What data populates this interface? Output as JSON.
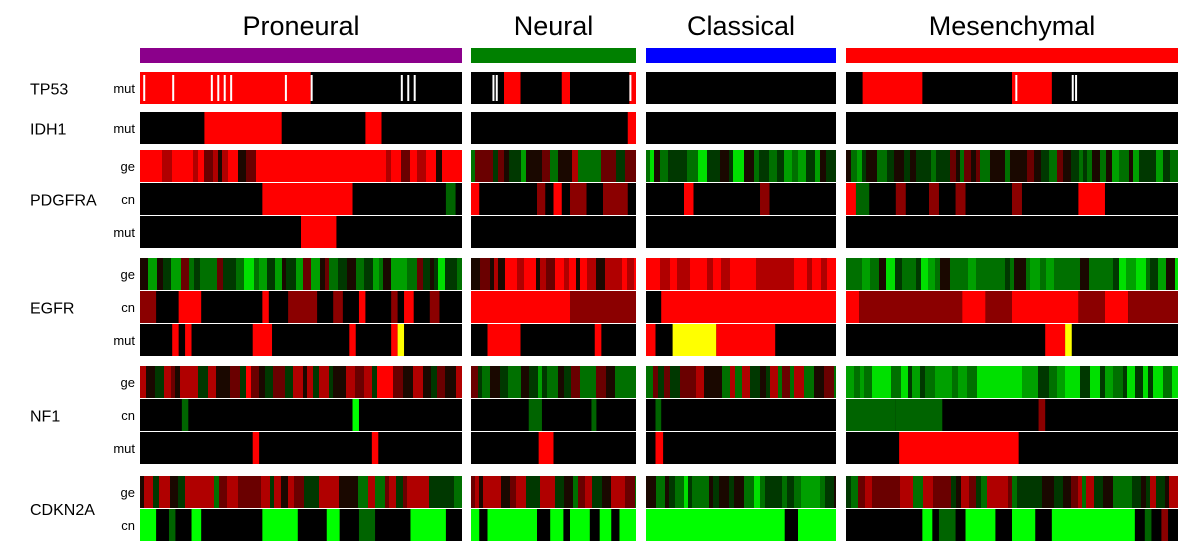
{
  "chart_data": {
    "type": "heatmap",
    "colors": {
      "background": "#000000",
      "red": "#ff0000",
      "dark_red": "#8b0000",
      "yellow": "#ffff00",
      "green": "#00ff00",
      "dark_green": "#006400",
      "white": "#ffffff"
    },
    "subtypes": [
      {
        "name": "Proneural",
        "color": "#8b008b"
      },
      {
        "name": "Neural",
        "color": "#008000"
      },
      {
        "name": "Classical",
        "color": "#0000ff"
      },
      {
        "name": "Mesenchymal",
        "color": "#ff0000"
      }
    ],
    "genes": [
      {
        "name": "TP53",
        "rows": [
          "mut"
        ]
      },
      {
        "name": "IDH1",
        "rows": [
          "mut"
        ]
      },
      {
        "name": "PDGFRA",
        "rows": [
          "ge",
          "cn",
          "mut"
        ]
      },
      {
        "name": "EGFR",
        "rows": [
          "ge",
          "cn",
          "mut"
        ]
      },
      {
        "name": "NF1",
        "rows": [
          "ge",
          "cn",
          "mut"
        ]
      },
      {
        "name": "CDKN2A",
        "rows": [
          "ge",
          "cn"
        ]
      }
    ],
    "segments": {
      "TP53.mut": [
        [
          [
            0.0,
            0.53,
            "red"
          ]
        ],
        [
          [
            0.2,
            0.3,
            "red"
          ],
          [
            0.55,
            0.6,
            "red"
          ],
          [
            0.96,
            1.0,
            "red"
          ]
        ],
        [],
        [
          [
            0.05,
            0.23,
            "red"
          ],
          [
            0.5,
            0.62,
            "red"
          ]
        ]
      ],
      "IDH1.mut": [
        [
          [
            0.2,
            0.44,
            "red"
          ],
          [
            0.7,
            0.75,
            "red"
          ]
        ],
        [
          [
            0.95,
            1.0,
            "red"
          ]
        ],
        [],
        []
      ],
      "PDGFRA.cn": [
        [
          [
            0.38,
            0.66,
            "red"
          ],
          [
            0.95,
            0.98,
            "dark_green"
          ]
        ],
        [
          [
            0.0,
            0.05,
            "red"
          ],
          [
            0.4,
            0.45,
            "dark_red"
          ],
          [
            0.5,
            0.55,
            "red"
          ],
          [
            0.6,
            0.7,
            "dark_red"
          ],
          [
            0.8,
            0.95,
            "dark_red"
          ]
        ],
        [
          [
            0.2,
            0.25,
            "red"
          ],
          [
            0.6,
            0.65,
            "dark_red"
          ]
        ],
        [
          [
            0.0,
            0.03,
            "red"
          ],
          [
            0.03,
            0.07,
            "dark_green"
          ],
          [
            0.15,
            0.18,
            "dark_red"
          ],
          [
            0.25,
            0.28,
            "dark_red"
          ],
          [
            0.33,
            0.36,
            "dark_red"
          ],
          [
            0.5,
            0.53,
            "dark_red"
          ],
          [
            0.7,
            0.78,
            "red"
          ]
        ]
      ],
      "PDGFRA.mut": [
        [
          [
            0.5,
            0.61,
            "red"
          ]
        ],
        [],
        [],
        []
      ],
      "EGFR.cn": [
        [
          [
            0.0,
            0.05,
            "dark_red"
          ],
          [
            0.12,
            0.19,
            "red"
          ],
          [
            0.38,
            0.4,
            "red"
          ],
          [
            0.46,
            0.55,
            "dark_red"
          ],
          [
            0.6,
            0.63,
            "dark_red"
          ],
          [
            0.68,
            0.7,
            "red"
          ],
          [
            0.78,
            0.8,
            "dark_red"
          ],
          [
            0.82,
            0.85,
            "red"
          ],
          [
            0.9,
            0.93,
            "dark_red"
          ]
        ],
        [
          [
            0.0,
            0.6,
            "red"
          ],
          [
            0.6,
            1.0,
            "dark_red"
          ]
        ],
        [
          [
            0.08,
            1.0,
            "red"
          ]
        ],
        [
          [
            0.0,
            0.04,
            "red"
          ],
          [
            0.04,
            0.35,
            "dark_red"
          ],
          [
            0.35,
            0.42,
            "red"
          ],
          [
            0.42,
            0.5,
            "dark_red"
          ],
          [
            0.5,
            0.7,
            "red"
          ],
          [
            0.7,
            0.78,
            "dark_red"
          ],
          [
            0.78,
            0.85,
            "red"
          ],
          [
            0.85,
            1.0,
            "dark_red"
          ]
        ]
      ],
      "EGFR.mut": [
        [
          [
            0.1,
            0.12,
            "red"
          ],
          [
            0.14,
            0.16,
            "red"
          ],
          [
            0.35,
            0.41,
            "red"
          ],
          [
            0.65,
            0.67,
            "red"
          ],
          [
            0.78,
            0.8,
            "red"
          ],
          [
            0.8,
            0.82,
            "yellow"
          ]
        ],
        [
          [
            0.1,
            0.3,
            "red"
          ],
          [
            0.75,
            0.79,
            "red"
          ]
        ],
        [
          [
            0.0,
            0.05,
            "red"
          ],
          [
            0.14,
            0.37,
            "yellow"
          ],
          [
            0.37,
            0.68,
            "red"
          ]
        ],
        [
          [
            0.6,
            0.66,
            "red"
          ],
          [
            0.66,
            0.68,
            "yellow"
          ]
        ]
      ],
      "NF1.cn": [
        [
          [
            0.13,
            0.15,
            "dark_green"
          ],
          [
            0.66,
            0.68,
            "green"
          ]
        ],
        [
          [
            0.35,
            0.43,
            "dark_green"
          ],
          [
            0.73,
            0.76,
            "dark_green"
          ]
        ],
        [
          [
            0.05,
            0.08,
            "dark_green"
          ]
        ],
        [
          [
            0.0,
            0.15,
            "dark_green"
          ],
          [
            0.15,
            0.29,
            "dark_green"
          ],
          [
            0.58,
            0.6,
            "dark_red"
          ]
        ]
      ],
      "NF1.mut": [
        [
          [
            0.35,
            0.37,
            "red"
          ],
          [
            0.72,
            0.74,
            "red"
          ]
        ],
        [
          [
            0.41,
            0.5,
            "red"
          ]
        ],
        [
          [
            0.05,
            0.09,
            "red"
          ]
        ],
        [
          [
            0.16,
            0.52,
            "red"
          ]
        ]
      ],
      "CDKN2A.cn": [
        [
          [
            0.0,
            0.05,
            "green"
          ],
          [
            0.09,
            0.11,
            "dark_green"
          ],
          [
            0.16,
            0.19,
            "green"
          ],
          [
            0.38,
            0.49,
            "green"
          ],
          [
            0.58,
            0.62,
            "green"
          ],
          [
            0.68,
            0.73,
            "dark_green"
          ],
          [
            0.84,
            0.95,
            "green"
          ]
        ],
        [
          [
            0.0,
            0.05,
            "green"
          ],
          [
            0.1,
            0.4,
            "green"
          ],
          [
            0.48,
            0.56,
            "green"
          ],
          [
            0.6,
            0.72,
            "green"
          ],
          [
            0.78,
            0.85,
            "green"
          ],
          [
            0.9,
            1.0,
            "green"
          ]
        ],
        [
          [
            0.0,
            0.1,
            "green"
          ],
          [
            0.1,
            0.73,
            "green"
          ],
          [
            0.8,
            1.0,
            "green"
          ]
        ],
        [
          [
            0.23,
            0.26,
            "green"
          ],
          [
            0.28,
            0.33,
            "dark_green"
          ],
          [
            0.36,
            0.45,
            "green"
          ],
          [
            0.5,
            0.57,
            "green"
          ],
          [
            0.62,
            0.87,
            "green"
          ],
          [
            0.9,
            0.92,
            "dark_green"
          ],
          [
            0.95,
            0.97,
            "dark_red"
          ]
        ]
      ]
    },
    "white_ticks": {
      "TP53.mut": [
        [
          0.01,
          0.1,
          0.22,
          0.24,
          0.26,
          0.28,
          0.45,
          0.53,
          0.81,
          0.83,
          0.85
        ],
        [
          0.13,
          0.15,
          0.96
        ],
        [],
        [
          0.51,
          0.68,
          0.69
        ]
      ]
    },
    "ge_seeds": {
      "PDGFRA.ge": [
        11,
        12,
        13,
        14
      ],
      "EGFR.ge": [
        21,
        22,
        23,
        24
      ],
      "NF1.ge": [
        31,
        32,
        33,
        34
      ],
      "CDKN2A.ge": [
        41,
        42,
        43,
        44
      ]
    },
    "ge_bias": {
      "PDGFRA.ge": [
        0.5,
        -0.15,
        -0.5,
        -0.25
      ],
      "EGFR.ge": [
        -0.35,
        0.45,
        0.9,
        -0.5
      ],
      "NF1.ge": [
        0.2,
        -0.25,
        -0.05,
        -0.75
      ],
      "CDKN2A.ge": [
        0.05,
        0.05,
        -0.5,
        0.05
      ]
    },
    "ge_overrides": {
      "PDGFRA.ge": [
        [
          [
            0.38,
            0.68,
            "red"
          ]
        ],
        [],
        [],
        []
      ]
    }
  }
}
